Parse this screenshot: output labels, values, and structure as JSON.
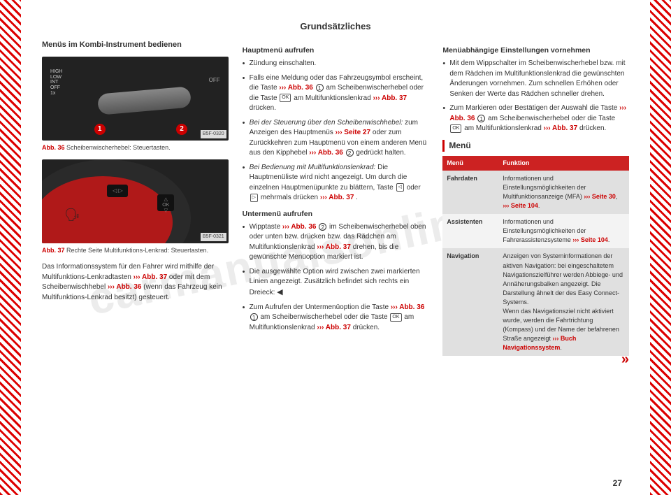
{
  "watermark": "carmanualsonline.info",
  "page_title": "Grundsätzliches",
  "page_number": "27",
  "continue_marker": "»",
  "col1": {
    "heading": "Menüs im Kombi-Instrument bedienen",
    "fig1": {
      "code": "B5F-0320",
      "num_label": "Abb. 36",
      "caption": "Scheibenwischerhebel: Steuertasten.",
      "marker1": "1",
      "marker2": "2",
      "stalk_text": "HIGH\nLOW\nINT\nOFF\n1x",
      "off_text": "OFF"
    },
    "fig2": {
      "code": "B5F-0321",
      "num_label": "Abb. 37",
      "caption": "Rechte Seite Multifunktions-Lenkrad: Steuertasten.",
      "btn_arrows": "◁ ▷",
      "btn_ok": "△\nOK\n▽"
    },
    "para_pre": "Das Informationssystem für den Fahrer wird mithilfe der Multifunktions-Lenkradtasten ",
    "ref_a": "››› Abb. 37",
    "para_mid": " oder mit dem Scheibenwischhebel ",
    "ref_b": "››› Abb. 36",
    "para_post": " (wenn das Fahrzeug kein Multifunktions-Lenkrad besitzt) gesteuert."
  },
  "col2": {
    "h1": "Hauptmenü aufrufen",
    "b1": "Zündung einschalten.",
    "b2a": "Falls eine Meldung oder das Fahrzeugsymbol erscheint, die Taste ",
    "b2ref1": "››› Abb. 36",
    "b2circ1": "1",
    "b2b": " am Scheibenwischerhebel oder die Taste ",
    "b2key": "OK",
    "b2c": " am Multifunktionslenkrad ",
    "b2ref2": "››› Abb. 37",
    "b2d": " drücken.",
    "b3a_em": "Bei der Steuerung über den Scheibenwischhebel:",
    "b3b": " zum Anzeigen des Hauptmenüs ",
    "b3ref": "››› Seite 27",
    "b3c": " oder zum Zurückkehren zum Hauptmenü von einem anderen Menü aus den Kipphebel ",
    "b3ref2": "››› Abb. 36",
    "b3circ": "2",
    "b3d": " gedrückt halten.",
    "b4a_em": "Bei Bedienung mit Multifunktionslenkrad:",
    "b4b": " Die Hauptmenüliste wird nicht angezeigt. Um durch die einzelnen Hauptmenüpunkte zu blättern, Taste ",
    "b4key1": "◁",
    "b4c": " oder ",
    "b4key2": "▷",
    "b4d": " mehrmals drücken ",
    "b4ref": "››› Abb. 37",
    "b4e": ".",
    "h2": "Untermenü aufrufen",
    "s1a": "Wipptaste ",
    "s1ref": "››› Abb. 36",
    "s1circ": "2",
    "s1b": " im Scheibenwischerhebel oben oder unten bzw. drücken bzw. das Rädchen am Multifunktionslenkrad ",
    "s1ref2": "››› Abb. 37",
    "s1c": " drehen, bis die gewünschte Menüoption markiert ist.",
    "s2a": "Die ausgewählte Option wird zwischen zwei markierten Linien angezeigt. Zusätzlich befindet sich rechts ein Dreieck: ",
    "s2tri": "◀",
    "s3a": "Zum Aufrufen der Untermenüoption die Taste ",
    "s3ref": "››› Abb. 36",
    "s3circ": "1",
    "s3b": " am Scheibenwischerhebel oder die Taste ",
    "s3key": "OK",
    "s3c": " am Multifunktionslenkrad ",
    "s3ref2": "››› Abb. 37",
    "s3d": " drücken."
  },
  "col3": {
    "h1": "Menüabhängige Einstellungen vornehmen",
    "b1": "Mit dem Wippschalter im Scheibenwischerhebel bzw. mit dem Rädchen im Multifunktionslenkrad die gewünschten Änderungen vornehmen. Zum schnellen Erhöhen oder Senken der Werte das Rädchen schneller drehen.",
    "b2a": "Zum Markieren oder Bestätigen der Auswahl die Taste ",
    "b2ref": "››› Abb. 36",
    "b2circ": "1",
    "b2b": " am Scheibenwischerhebel oder die Taste ",
    "b2key": "OK",
    "b2c": " am Multifunktionslenkrad ",
    "b2ref2": "››› Abb. 37",
    "b2d": " drücken.",
    "menu_title": "Menü",
    "table": {
      "th1": "Menü",
      "th2": "Funktion",
      "rows": [
        {
          "name": "Fahrdaten",
          "desc_pre": "Informationen und Einstellungsmöglichkeiten der Multifunktionsanzeige (MFA) ",
          "ref1": "››› Seite 30",
          "mid": ", ",
          "ref2": "››› Seite 104",
          "post": "."
        },
        {
          "name": "Assistenten",
          "desc_pre": "Informationen und Einstellungsmöglichkeiten der Fahrerassistenzsysteme ",
          "ref1": "››› Seite 104",
          "mid": "",
          "ref2": "",
          "post": "."
        },
        {
          "name": "Navigation",
          "desc_pre": "Anzeigen von Systeminformationen der aktiven Navigation: bei eingeschaltetem Navigationszielführer werden Abbiege- und Annäherungsbalken angezeigt. Die Darstellung ähnelt der des Easy Connect-Systems.\nWenn das Navigationsziel nicht aktiviert wurde, werden die Fahrtrichtung (Kompass) und der Name der befahrenen Straße angezeigt ",
          "ref1": "››› Buch Navigationssystem",
          "mid": "",
          "ref2": "",
          "post": "."
        }
      ]
    }
  }
}
